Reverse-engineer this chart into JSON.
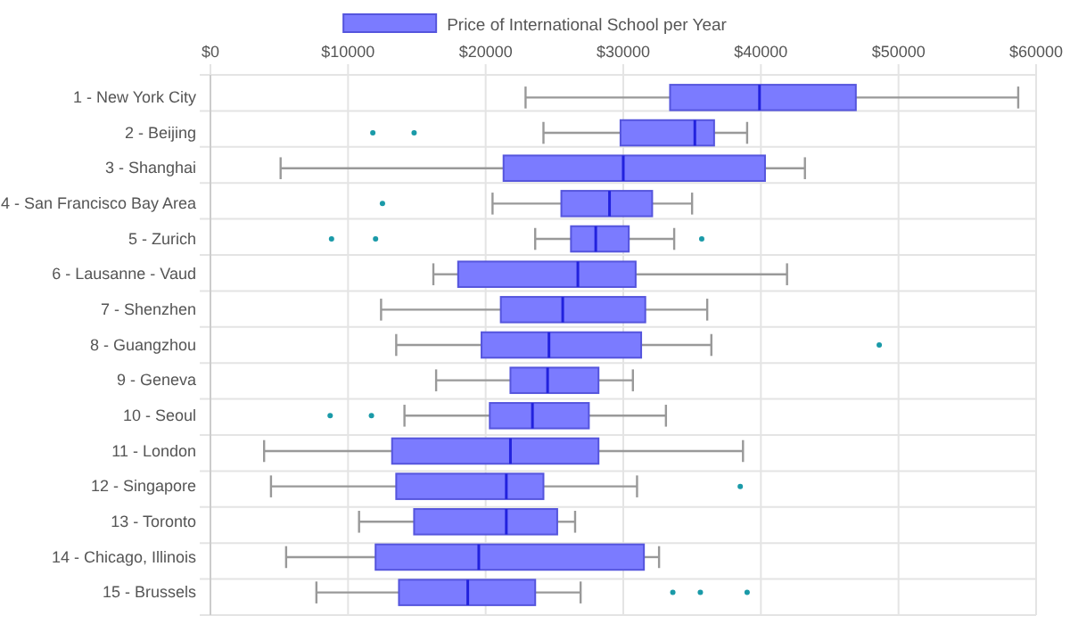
{
  "chart_data": {
    "type": "box",
    "orientation": "horizontal",
    "legend": "top",
    "grid": true,
    "categories": [
      "1 - New York City",
      "2 - Beijing",
      "3 - Shanghai",
      "4 - San Francisco Bay Area",
      "5 - Zurich",
      "6 - Lausanne - Vaud",
      "7 - Shenzhen",
      "8 - Guangzhou",
      "9 - Geneva",
      "10 - Seoul",
      "11 - London",
      "12 - Singapore",
      "13 - Toronto",
      "14 - Chicago, Illinois",
      "15 - Brussels"
    ],
    "xlim": [
      0,
      60000
    ],
    "xticks": [
      {
        "value": 0,
        "label": "$0"
      },
      {
        "value": 10000,
        "label": "$10000"
      },
      {
        "value": 20000,
        "label": "$20000"
      },
      {
        "value": 30000,
        "label": "$30000"
      },
      {
        "value": 40000,
        "label": "$40000"
      },
      {
        "value": 50000,
        "label": "$50000"
      },
      {
        "value": 60000,
        "label": "$60000"
      }
    ],
    "series": [
      {
        "name": "Price of International School per Year",
        "color": "#7b7bff",
        "boxes": [
          {
            "low": 22900,
            "q1": 33400,
            "median": 39900,
            "q3": 46900,
            "high": 58700
          },
          {
            "low": 24200,
            "q1": 29800,
            "median": 35200,
            "q3": 36600,
            "high": 39000,
            "outliers": [
              11800,
              14800
            ]
          },
          {
            "low": 5100,
            "q1": 21300,
            "median": 30000,
            "q3": 40300,
            "high": 43200
          },
          {
            "low": 20500,
            "q1": 25500,
            "median": 29000,
            "q3": 32100,
            "high": 35000,
            "outliers": [
              12500
            ]
          },
          {
            "low": 23600,
            "q1": 26200,
            "median": 28000,
            "q3": 30400,
            "high": 33700,
            "outliers": [
              8800,
              12000,
              35700
            ]
          },
          {
            "low": 16200,
            "q1": 18000,
            "median": 26700,
            "q3": 30900,
            "high": 41900
          },
          {
            "low": 12400,
            "q1": 21100,
            "median": 25600,
            "q3": 31600,
            "high": 36100
          },
          {
            "low": 13500,
            "q1": 19700,
            "median": 24600,
            "q3": 31300,
            "high": 36400,
            "outliers": [
              48600
            ]
          },
          {
            "low": 16400,
            "q1": 21800,
            "median": 24500,
            "q3": 28200,
            "high": 30700
          },
          {
            "low": 14100,
            "q1": 20300,
            "median": 23400,
            "q3": 27500,
            "high": 33100,
            "outliers": [
              8700,
              11700
            ]
          },
          {
            "low": 3900,
            "q1": 13200,
            "median": 21800,
            "q3": 28200,
            "high": 38700
          },
          {
            "low": 4400,
            "q1": 13500,
            "median": 21500,
            "q3": 24200,
            "high": 31000,
            "outliers": [
              38500
            ]
          },
          {
            "low": 10800,
            "q1": 14800,
            "median": 21500,
            "q3": 25200,
            "high": 26500
          },
          {
            "low": 5500,
            "q1": 12000,
            "median": 19500,
            "q3": 31500,
            "high": 32600
          },
          {
            "low": 7700,
            "q1": 13700,
            "median": 18700,
            "q3": 23600,
            "high": 26900,
            "outliers": [
              33600,
              35600,
              39000
            ]
          }
        ]
      }
    ]
  }
}
